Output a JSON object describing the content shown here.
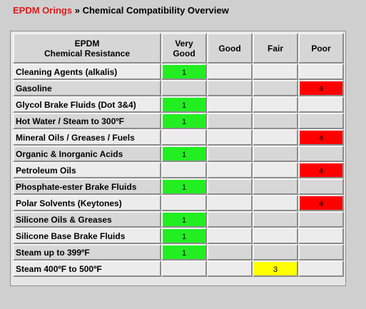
{
  "header": {
    "link_text": "EPDM Orings",
    "separator": "»",
    "title": "Chemical Compatibility Overview"
  },
  "table": {
    "head": {
      "chemical_line1": "EPDM",
      "chemical_line2": "Chemical Resistance",
      "very_good_line1": "Very",
      "very_good_line2": "Good",
      "good": "Good",
      "fair": "Fair",
      "poor": "Poor"
    },
    "rows": [
      {
        "name": "Cleaning Agents (alkalis)",
        "very_good": "1",
        "good": "",
        "fair": "",
        "poor": ""
      },
      {
        "name": "Gasoline",
        "very_good": "",
        "good": "",
        "fair": "",
        "poor": "4"
      },
      {
        "name": "Glycol Brake Fluids (Dot 3&4)",
        "very_good": "1",
        "good": "",
        "fair": "",
        "poor": ""
      },
      {
        "name": "Hot Water / Steam to 300ºF",
        "very_good": "1",
        "good": "",
        "fair": "",
        "poor": ""
      },
      {
        "name": "Mineral Oils / Greases / Fuels",
        "very_good": "",
        "good": "",
        "fair": "",
        "poor": "4"
      },
      {
        "name": "Organic & Inorganic Acids",
        "very_good": "1",
        "good": "",
        "fair": "",
        "poor": ""
      },
      {
        "name": "Petroleum Oils",
        "very_good": "",
        "good": "",
        "fair": "",
        "poor": "4"
      },
      {
        "name": "Phosphate-ester Brake Fluids",
        "very_good": "1",
        "good": "",
        "fair": "",
        "poor": ""
      },
      {
        "name": "Polar Solvents (Keytones)",
        "very_good": "",
        "good": "",
        "fair": "",
        "poor": "4"
      },
      {
        "name": "Silicone Oils & Greases",
        "very_good": "1",
        "good": "",
        "fair": "",
        "poor": ""
      },
      {
        "name": "Silicone Base Brake Fluids",
        "very_good": "1",
        "good": "",
        "fair": "",
        "poor": ""
      },
      {
        "name": "Steam up to 399ºF",
        "very_good": "1",
        "good": "",
        "fair": "",
        "poor": ""
      },
      {
        "name": "Steam 400ºF to 500ºF",
        "very_good": "",
        "good": "",
        "fair": "3",
        "poor": ""
      }
    ]
  },
  "colors": {
    "very_good": "#22ee22",
    "fair": "#ffff00",
    "poor": "#ff0000",
    "link": "#e21a1a"
  }
}
